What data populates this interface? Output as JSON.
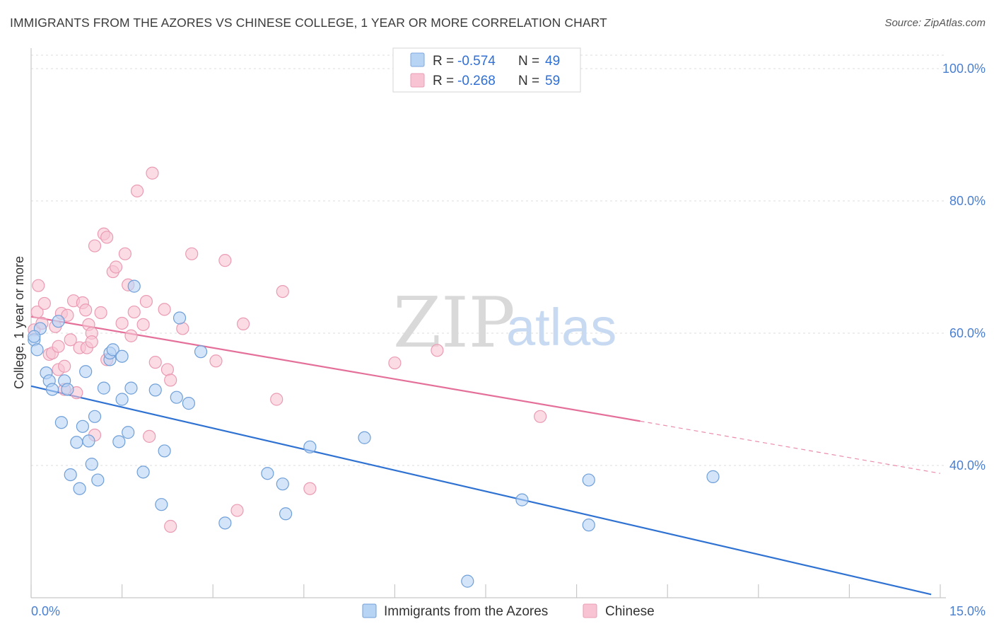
{
  "header": {
    "title": "IMMIGRANTS FROM THE AZORES VS CHINESE COLLEGE, 1 YEAR OR MORE CORRELATION CHART",
    "source": "Source: ZipAtlas.com"
  },
  "watermark": {
    "part1": "ZIP",
    "part2": "atlas"
  },
  "legend": {
    "rows": [
      {
        "r_label": "R = ",
        "r_value": "-0.574",
        "n_label": "N = ",
        "n_value": "49",
        "color": "#b8d4f5",
        "stroke": "#7ba7df"
      },
      {
        "r_label": "R = ",
        "r_value": "-0.268",
        "n_label": "N = ",
        "n_value": "59",
        "color": "#f8c4d4",
        "stroke": "#ec9bb4"
      }
    ]
  },
  "chart_data": {
    "type": "scatter",
    "title": "IMMIGRANTS FROM THE AZORES VS CHINESE COLLEGE, 1 YEAR OR MORE CORRELATION CHART",
    "xlabel": "",
    "ylabel": "College, 1 year or more",
    "xlim": [
      0,
      15
    ],
    "ylim": [
      20,
      102
    ],
    "x_tick_labels": {
      "min": "0.0%",
      "max": "15.0%"
    },
    "y_ticks": [
      {
        "value": 100,
        "label": "100.0%"
      },
      {
        "value": 80,
        "label": "80.0%"
      },
      {
        "value": 60,
        "label": "60.0%"
      },
      {
        "value": 40,
        "label": "40.0%"
      }
    ],
    "grid": true,
    "series": [
      {
        "name": "Immigrants from the Azores",
        "color": "#b8d4f5",
        "stroke": "#6f9fd8",
        "line_color": "#2f72d2",
        "trend": {
          "x0": 0,
          "y0": 52.0,
          "x1": 14.85,
          "y1": 20.5,
          "dashed_from": null
        },
        "points": [
          [
            0.05,
            59.0
          ],
          [
            0.1,
            57.5
          ],
          [
            0.15,
            60.7
          ],
          [
            0.25,
            54.0
          ],
          [
            0.3,
            52.8
          ],
          [
            0.35,
            51.5
          ],
          [
            0.45,
            61.8
          ],
          [
            0.5,
            46.5
          ],
          [
            0.55,
            52.8
          ],
          [
            0.6,
            51.5
          ],
          [
            0.65,
            38.6
          ],
          [
            0.75,
            43.5
          ],
          [
            0.8,
            36.5
          ],
          [
            0.85,
            45.9
          ],
          [
            0.9,
            54.2
          ],
          [
            0.95,
            43.7
          ],
          [
            1.0,
            40.2
          ],
          [
            1.05,
            47.4
          ],
          [
            1.1,
            37.8
          ],
          [
            1.2,
            51.7
          ],
          [
            1.3,
            56.0
          ],
          [
            1.3,
            57.0
          ],
          [
            1.35,
            57.5
          ],
          [
            1.45,
            43.6
          ],
          [
            1.5,
            56.5
          ],
          [
            1.5,
            50.0
          ],
          [
            1.6,
            45.0
          ],
          [
            1.65,
            51.7
          ],
          [
            1.7,
            67.1
          ],
          [
            1.85,
            39.0
          ],
          [
            2.05,
            51.4
          ],
          [
            2.15,
            34.1
          ],
          [
            2.2,
            42.2
          ],
          [
            2.4,
            50.3
          ],
          [
            2.45,
            62.3
          ],
          [
            2.6,
            49.4
          ],
          [
            2.8,
            57.2
          ],
          [
            3.2,
            31.3
          ],
          [
            3.9,
            38.8
          ],
          [
            4.15,
            37.2
          ],
          [
            4.2,
            32.7
          ],
          [
            4.6,
            42.8
          ],
          [
            5.5,
            44.2
          ],
          [
            7.2,
            22.5
          ],
          [
            8.1,
            34.8
          ],
          [
            9.2,
            31.0
          ],
          [
            9.2,
            37.8
          ],
          [
            11.25,
            38.3
          ],
          [
            0.05,
            59.5
          ]
        ]
      },
      {
        "name": "Chinese",
        "color": "#f8c4d4",
        "stroke": "#ea9bb3",
        "line_color": "#e4709a",
        "trend": {
          "x0": 0,
          "y0": 62.5,
          "x1": 10.05,
          "y1": 46.7,
          "dashed_from": 10.05,
          "dashed_to_x": 15,
          "dashed_to_y": 38.8
        },
        "points": [
          [
            0.05,
            60.5
          ],
          [
            0.1,
            63.2
          ],
          [
            0.12,
            67.2
          ],
          [
            0.18,
            61.5
          ],
          [
            0.22,
            64.5
          ],
          [
            0.3,
            56.8
          ],
          [
            0.35,
            57.0
          ],
          [
            0.4,
            61.0
          ],
          [
            0.45,
            58.0
          ],
          [
            0.45,
            54.5
          ],
          [
            0.5,
            63.0
          ],
          [
            0.55,
            51.5
          ],
          [
            0.55,
            55.0
          ],
          [
            0.6,
            62.7
          ],
          [
            0.65,
            59.0
          ],
          [
            0.7,
            64.9
          ],
          [
            0.75,
            51.0
          ],
          [
            0.8,
            57.8
          ],
          [
            0.85,
            64.6
          ],
          [
            0.9,
            63.5
          ],
          [
            0.92,
            57.8
          ],
          [
            0.95,
            61.3
          ],
          [
            1.0,
            60.0
          ],
          [
            1.0,
            58.7
          ],
          [
            1.05,
            73.2
          ],
          [
            1.05,
            44.6
          ],
          [
            1.15,
            63.1
          ],
          [
            1.2,
            75.0
          ],
          [
            1.25,
            74.5
          ],
          [
            1.25,
            56.0
          ],
          [
            1.35,
            69.3
          ],
          [
            1.4,
            70.0
          ],
          [
            1.5,
            61.5
          ],
          [
            1.55,
            72.0
          ],
          [
            1.6,
            67.3
          ],
          [
            1.65,
            59.6
          ],
          [
            1.7,
            63.2
          ],
          [
            1.75,
            81.5
          ],
          [
            1.85,
            61.3
          ],
          [
            1.9,
            64.8
          ],
          [
            1.95,
            44.4
          ],
          [
            2.0,
            84.2
          ],
          [
            2.05,
            55.6
          ],
          [
            2.2,
            63.6
          ],
          [
            2.25,
            54.5
          ],
          [
            2.3,
            52.9
          ],
          [
            2.3,
            30.8
          ],
          [
            2.5,
            60.7
          ],
          [
            2.65,
            72.0
          ],
          [
            3.05,
            55.8
          ],
          [
            3.2,
            71.0
          ],
          [
            3.4,
            33.2
          ],
          [
            3.5,
            61.4
          ],
          [
            4.05,
            50.0
          ],
          [
            4.15,
            66.3
          ],
          [
            4.6,
            36.5
          ],
          [
            6.0,
            55.5
          ],
          [
            6.7,
            57.4
          ],
          [
            8.4,
            47.4
          ]
        ]
      }
    ]
  },
  "bottom_legend": [
    {
      "label": "Immigrants from the Azores",
      "color": "#b8d4f5",
      "stroke": "#6f9fd8"
    },
    {
      "label": "Chinese",
      "color": "#f8c4d4",
      "stroke": "#ea9bb3"
    }
  ]
}
